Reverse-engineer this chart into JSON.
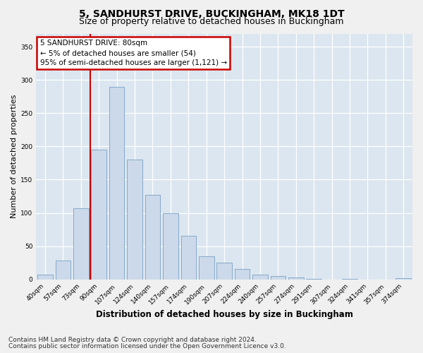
{
  "title": "5, SANDHURST DRIVE, BUCKINGHAM, MK18 1DT",
  "subtitle": "Size of property relative to detached houses in Buckingham",
  "xlabel": "Distribution of detached houses by size in Buckingham",
  "ylabel": "Number of detached properties",
  "bar_labels": [
    "40sqm",
    "57sqm",
    "73sqm",
    "90sqm",
    "107sqm",
    "124sqm",
    "140sqm",
    "157sqm",
    "174sqm",
    "190sqm",
    "207sqm",
    "224sqm",
    "240sqm",
    "257sqm",
    "274sqm",
    "291sqm",
    "307sqm",
    "324sqm",
    "341sqm",
    "357sqm",
    "374sqm"
  ],
  "bar_values": [
    7,
    28,
    107,
    195,
    290,
    180,
    127,
    99,
    66,
    35,
    25,
    15,
    7,
    5,
    3,
    1,
    0,
    1,
    0,
    0,
    2
  ],
  "bar_color": "#ccd9ea",
  "bar_edgecolor": "#7aa0c4",
  "ylim": [
    0,
    370
  ],
  "yticks": [
    0,
    50,
    100,
    150,
    200,
    250,
    300,
    350
  ],
  "red_line_x": 2.5,
  "annotation_text": "5 SANDHURST DRIVE: 80sqm\n← 5% of detached houses are smaller (54)\n95% of semi-detached houses are larger (1,121) →",
  "annotation_box_facecolor": "#ffffff",
  "annotation_box_edgecolor": "#cc0000",
  "plot_bg": "#dce6f0",
  "fig_bg": "#f0f0f0",
  "grid_color": "#ffffff",
  "title_fontsize": 10,
  "subtitle_fontsize": 9,
  "xlabel_fontsize": 8.5,
  "ylabel_fontsize": 8,
  "footer_fontsize": 6.5,
  "tick_fontsize": 6.5,
  "annot_fontsize": 7.5,
  "footer_line1": "Contains HM Land Registry data © Crown copyright and database right 2024.",
  "footer_line2": "Contains public sector information licensed under the Open Government Licence v3.0."
}
